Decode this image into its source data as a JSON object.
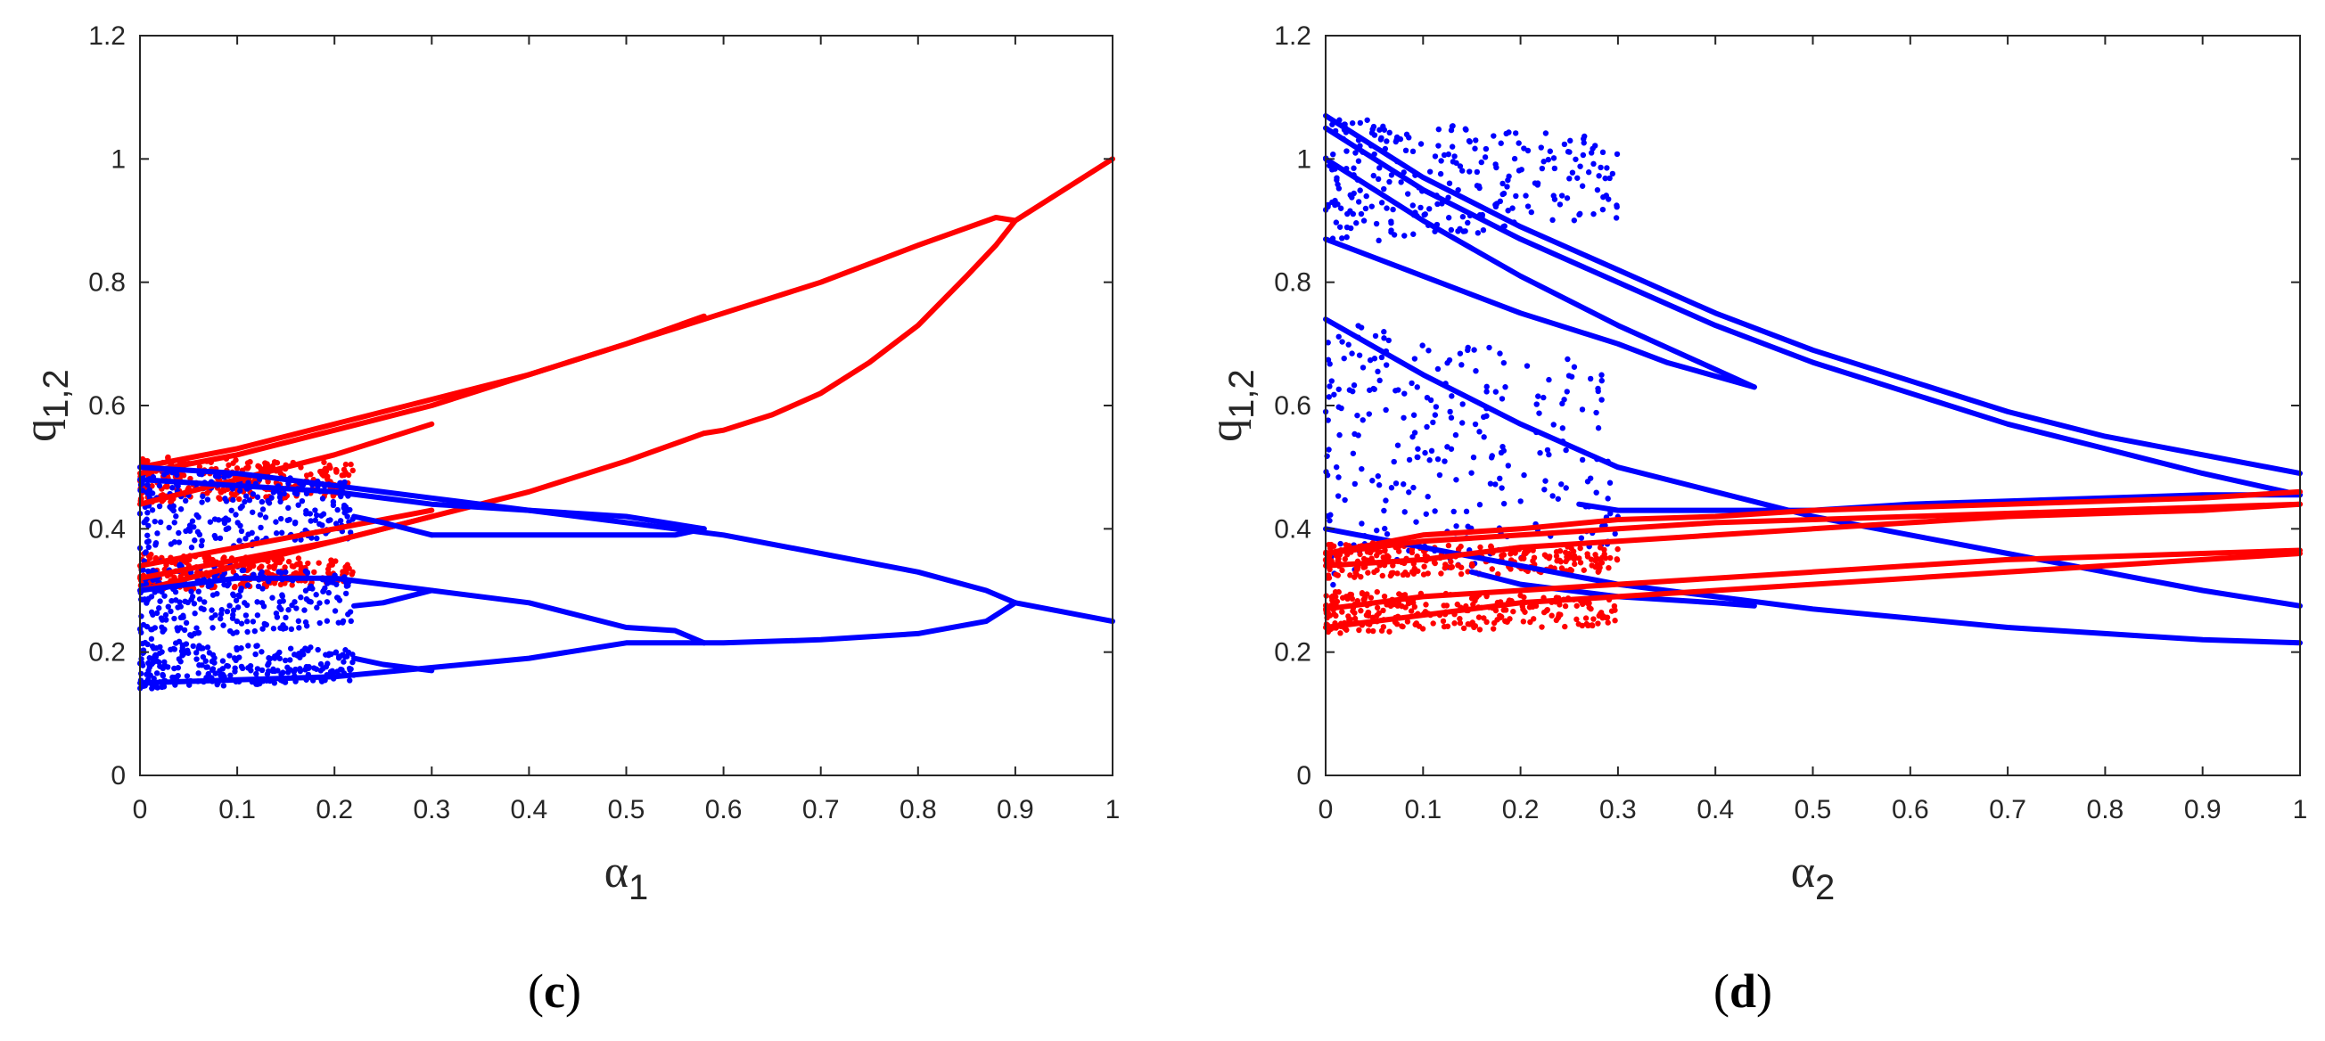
{
  "colors": {
    "series_a": "#ff0000",
    "series_b": "#0000ff",
    "axis": "#262626"
  },
  "chart_data": [
    {
      "type": "scatter",
      "caption": {
        "open": "(",
        "letter": "c",
        "close": ")"
      },
      "xlabel": {
        "main": "α",
        "sub": "1"
      },
      "ylabel": {
        "main": "q",
        "sub": "1,2"
      },
      "xlim": [
        0,
        1
      ],
      "ylim": [
        0,
        1.2
      ],
      "x_ticks": [
        "0",
        "0.1",
        "0.2",
        "0.3",
        "0.4",
        "0.5",
        "0.6",
        "0.7",
        "0.8",
        "0.9",
        "1"
      ],
      "y_ticks": [
        "0",
        "0.2",
        "0.4",
        "0.6",
        "0.8",
        "1",
        "1.2"
      ],
      "grid": false,
      "series": [
        {
          "color": "red",
          "branches": [
            {
              "x": [
                0,
                0.1,
                0.2,
                0.3,
                0.4,
                0.5,
                0.6,
                0.7,
                0.8,
                0.88,
                0.9
              ],
              "y": [
                0.5,
                0.53,
                0.57,
                0.61,
                0.65,
                0.7,
                0.75,
                0.8,
                0.86,
                0.905,
                0.9
              ]
            },
            {
              "x": [
                0.9,
                0.95,
                1.0
              ],
              "y": [
                0.9,
                0.95,
                1.0
              ]
            },
            {
              "x": [
                0.9,
                0.88,
                0.85,
                0.8,
                0.75,
                0.7,
                0.65,
                0.6,
                0.58
              ],
              "y": [
                0.9,
                0.86,
                0.81,
                0.73,
                0.67,
                0.62,
                0.585,
                0.56,
                0.555
              ]
            },
            {
              "x": [
                0,
                0.1,
                0.2,
                0.3,
                0.4,
                0.5,
                0.58
              ],
              "y": [
                0.3,
                0.34,
                0.38,
                0.42,
                0.46,
                0.51,
                0.555
              ]
            },
            {
              "x": [
                0,
                0.1,
                0.2,
                0.3,
                0.4,
                0.5,
                0.58
              ],
              "y": [
                0.49,
                0.52,
                0.56,
                0.6,
                0.65,
                0.7,
                0.745
              ]
            },
            {
              "x": [
                0,
                0.1,
                0.2,
                0.3
              ],
              "y": [
                0.44,
                0.48,
                0.52,
                0.57
              ]
            },
            {
              "x": [
                0,
                0.1,
                0.2,
                0.3
              ],
              "y": [
                0.32,
                0.35,
                0.38,
                0.42
              ]
            },
            {
              "x": [
                0,
                0.1,
                0.2,
                0.3
              ],
              "y": [
                0.34,
                0.37,
                0.4,
                0.43
              ]
            }
          ],
          "cloud": {
            "x_range": [
              0,
              0.22
            ],
            "y_bands": [
              [
                0.3,
                0.36
              ],
              [
                0.44,
                0.52
              ]
            ]
          }
        },
        {
          "color": "blue",
          "branches": [
            {
              "x": [
                0,
                0.1,
                0.2,
                0.3,
                0.4,
                0.5,
                0.6,
                0.7,
                0.8,
                0.87,
                0.9
              ],
              "y": [
                0.5,
                0.49,
                0.47,
                0.45,
                0.43,
                0.41,
                0.39,
                0.36,
                0.33,
                0.3,
                0.28
              ]
            },
            {
              "x": [
                0.9,
                0.95,
                1.0
              ],
              "y": [
                0.28,
                0.265,
                0.25
              ]
            },
            {
              "x": [
                0.9,
                0.87,
                0.8,
                0.7,
                0.6,
                0.58
              ],
              "y": [
                0.28,
                0.25,
                0.23,
                0.22,
                0.215,
                0.215
              ]
            },
            {
              "x": [
                0.58,
                0.5,
                0.4,
                0.3,
                0.2,
                0.1,
                0
              ],
              "y": [
                0.215,
                0.215,
                0.19,
                0.175,
                0.16,
                0.155,
                0.15
              ]
            },
            {
              "x": [
                0.58,
                0.55,
                0.5,
                0.4,
                0.3,
                0.2,
                0.1,
                0
              ],
              "y": [
                0.215,
                0.235,
                0.24,
                0.28,
                0.3,
                0.32,
                0.32,
                0.3
              ]
            },
            {
              "x": [
                0,
                0.1,
                0.2,
                0.3,
                0.4,
                0.5,
                0.58
              ],
              "y": [
                0.48,
                0.47,
                0.46,
                0.44,
                0.43,
                0.42,
                0.4
              ]
            },
            {
              "x": [
                0.58,
                0.55,
                0.5,
                0.4,
                0.3
              ],
              "y": [
                0.4,
                0.39,
                0.39,
                0.39,
                0.39
              ]
            },
            {
              "x": [
                0.3,
                0.25,
                0.22
              ],
              "y": [
                0.39,
                0.41,
                0.42
              ]
            },
            {
              "x": [
                0.3,
                0.25,
                0.22
              ],
              "y": [
                0.3,
                0.28,
                0.275
              ]
            },
            {
              "x": [
                0.3,
                0.25,
                0.22
              ],
              "y": [
                0.17,
                0.18,
                0.19
              ]
            }
          ],
          "cloud": {
            "x_range": [
              0,
              0.22
            ],
            "y_bands": [
              [
                0.14,
                0.22
              ],
              [
                0.22,
                0.35
              ],
              [
                0.36,
                0.5
              ]
            ]
          }
        }
      ]
    },
    {
      "type": "scatter",
      "caption": {
        "open": "(",
        "letter": "d",
        "close": ")"
      },
      "xlabel": {
        "main": "α",
        "sub": "2"
      },
      "ylabel": {
        "main": "q",
        "sub": "1,2"
      },
      "xlim": [
        0,
        1
      ],
      "ylim": [
        0,
        1.2
      ],
      "x_ticks": [
        "0",
        "0.1",
        "0.2",
        "0.3",
        "0.4",
        "0.5",
        "0.6",
        "0.7",
        "0.8",
        "0.9",
        "1"
      ],
      "y_ticks": [
        "0",
        "0.2",
        "0.4",
        "0.6",
        "0.8",
        "1",
        "1.2"
      ],
      "grid": false,
      "series": [
        {
          "color": "blue",
          "branches": [
            {
              "x": [
                0,
                0.1,
                0.2,
                0.3,
                0.4,
                0.5,
                0.6,
                0.7,
                0.8,
                0.9,
                1.0
              ],
              "y": [
                1.07,
                0.97,
                0.89,
                0.82,
                0.75,
                0.69,
                0.64,
                0.59,
                0.55,
                0.52,
                0.49
              ]
            },
            {
              "x": [
                0,
                0.1,
                0.2,
                0.3,
                0.4,
                0.5,
                0.6,
                0.7,
                0.8,
                0.9,
                1.0
              ],
              "y": [
                1.05,
                0.95,
                0.87,
                0.8,
                0.73,
                0.67,
                0.62,
                0.57,
                0.53,
                0.49,
                0.455
              ]
            },
            {
              "x": [
                0,
                0.1,
                0.2,
                0.3,
                0.35,
                0.44
              ],
              "y": [
                0.87,
                0.81,
                0.75,
                0.7,
                0.67,
                0.63
              ]
            },
            {
              "x": [
                0,
                0.1,
                0.2,
                0.25,
                0.3,
                0.44
              ],
              "y": [
                1.0,
                0.9,
                0.81,
                0.77,
                0.73,
                0.63
              ]
            },
            {
              "x": [
                0,
                0.1,
                0.2,
                0.3,
                0.4,
                0.5,
                0.6,
                0.7,
                0.8,
                0.9,
                1.0
              ],
              "y": [
                0.74,
                0.65,
                0.57,
                0.5,
                0.46,
                0.42,
                0.39,
                0.36,
                0.33,
                0.3,
                0.275
              ]
            },
            {
              "x": [
                0.26,
                0.3,
                0.4,
                0.5,
                0.6,
                0.7,
                0.8,
                0.9,
                1.0
              ],
              "y": [
                0.44,
                0.43,
                0.43,
                0.43,
                0.44,
                0.445,
                0.45,
                0.455,
                0.455
              ]
            },
            {
              "x": [
                0,
                0.1,
                0.2,
                0.3,
                0.4,
                0.5,
                0.6,
                0.7,
                0.8,
                0.9,
                1.0
              ],
              "y": [
                0.4,
                0.37,
                0.34,
                0.31,
                0.29,
                0.27,
                0.255,
                0.24,
                0.23,
                0.22,
                0.215
              ]
            },
            {
              "x": [
                0.15,
                0.2,
                0.3,
                0.4,
                0.44
              ],
              "y": [
                0.33,
                0.31,
                0.29,
                0.28,
                0.275
              ]
            }
          ],
          "cloud": {
            "x_range": [
              0,
              0.3
            ],
            "y_bands": [
              [
                0.3,
                0.74
              ],
              [
                0.86,
                1.07
              ]
            ]
          }
        },
        {
          "color": "red",
          "branches": [
            {
              "x": [
                0,
                0.1,
                0.2,
                0.3,
                0.4,
                0.5,
                0.6,
                0.7,
                0.8,
                0.9,
                1.0
              ],
              "y": [
                0.36,
                0.38,
                0.39,
                0.4,
                0.41,
                0.415,
                0.42,
                0.425,
                0.43,
                0.435,
                0.44
              ]
            },
            {
              "x": [
                0,
                0.1,
                0.2,
                0.3,
                0.4,
                0.5,
                0.6,
                0.7,
                0.8,
                0.9,
                1.0
              ],
              "y": [
                0.34,
                0.35,
                0.37,
                0.38,
                0.39,
                0.4,
                0.41,
                0.42,
                0.425,
                0.43,
                0.44
              ]
            },
            {
              "x": [
                0,
                0.1,
                0.2,
                0.3,
                0.4,
                0.5,
                0.6,
                0.7,
                0.8,
                0.9,
                1.0
              ],
              "y": [
                0.27,
                0.29,
                0.3,
                0.31,
                0.32,
                0.33,
                0.34,
                0.35,
                0.355,
                0.36,
                0.365
              ]
            },
            {
              "x": [
                0,
                0.1,
                0.2,
                0.3,
                0.4,
                0.5,
                0.6,
                0.7,
                0.8,
                0.9,
                1.0
              ],
              "y": [
                0.24,
                0.26,
                0.28,
                0.29,
                0.3,
                0.31,
                0.32,
                0.33,
                0.34,
                0.35,
                0.36
              ]
            },
            {
              "x": [
                0,
                0.1,
                0.2,
                0.3,
                0.4,
                0.5,
                0.6,
                0.7,
                0.8,
                0.9,
                1.0
              ],
              "y": [
                0.36,
                0.39,
                0.4,
                0.415,
                0.42,
                0.43,
                0.435,
                0.44,
                0.445,
                0.45,
                0.46
              ]
            }
          ],
          "cloud": {
            "x_range": [
              0,
              0.3
            ],
            "y_bands": [
              [
                0.23,
                0.3
              ],
              [
                0.32,
                0.38
              ]
            ]
          }
        }
      ]
    }
  ]
}
